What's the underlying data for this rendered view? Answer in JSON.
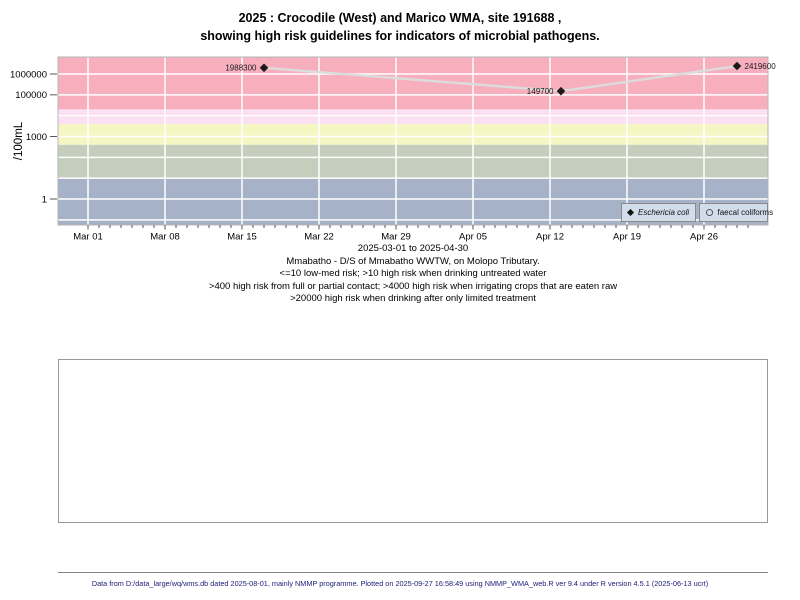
{
  "header": {
    "title_line1": "2025 : Crocodile (West) and Marico WMA, site 191688 ,",
    "title_line2": "showing high risk guidelines for indicators of microbial pathogens."
  },
  "chart_data": {
    "type": "line",
    "yscale": "log10",
    "ylabel": "/100mL",
    "xlabel_period": "2025-03-01 to 2025-04-30",
    "ylim_log10": [
      -1.25,
      6.82
    ],
    "x_days_total": 61,
    "x_ticks_major": [
      {
        "label": "Mar 01",
        "day": 0
      },
      {
        "label": "Mar 08",
        "day": 7
      },
      {
        "label": "Mar 15",
        "day": 14
      },
      {
        "label": "Mar 22",
        "day": 21
      },
      {
        "label": "Mar 29",
        "day": 28
      },
      {
        "label": "Apr 05",
        "day": 35
      },
      {
        "label": "Apr 12",
        "day": 42
      },
      {
        "label": "Apr 19",
        "day": 49
      },
      {
        "label": "Apr 26",
        "day": 56
      }
    ],
    "y_ticks": [
      {
        "label": "1000000",
        "value": 1000000
      },
      {
        "label": "100000",
        "value": 100000
      },
      {
        "label": "1000",
        "value": 1000
      },
      {
        "label": "1",
        "value": 1
      }
    ],
    "gridline_values_log10": [
      -1,
      0,
      1,
      2,
      3,
      4,
      5,
      6
    ],
    "grid_color": "#ffffff",
    "risk_bands": [
      {
        "name": "high risk when drinking after only limited treatment",
        "min": 20000,
        "max": null,
        "color": "#f7afbe"
      },
      {
        "name": "high risk when irrigating crops that are eaten raw",
        "min": 4000,
        "max": 20000,
        "color": "#fbdff2"
      },
      {
        "name": "high risk from full or partial contact",
        "min": 400,
        "max": 4000,
        "color": "#f6f5c4"
      },
      {
        "name": "high risk when drinking untreated water",
        "min": 10,
        "max": 400,
        "color": "#c5cebc"
      },
      {
        "name": "low-med risk",
        "min": null,
        "max": 10,
        "color": "#a6b2c8"
      }
    ],
    "series": [
      {
        "name": "Eschericia coli",
        "marker": "filled-diamond",
        "line_color": "#dcdcdc",
        "marker_color": "#1a1a1a",
        "points": [
          {
            "day": 16,
            "value": 1988300,
            "label": "1988300",
            "label_side": "left"
          },
          {
            "day": 43,
            "value": 149700,
            "label": "149700",
            "label_side": "left"
          },
          {
            "day": 59,
            "value": 2419600,
            "label": "2419600",
            "label_side": "right"
          }
        ]
      },
      {
        "name": "faecal coliforms",
        "marker": "open-circle",
        "line_color": "#dcdcdc",
        "marker_color": "#555555",
        "points": []
      }
    ],
    "legend": {
      "items": [
        {
          "label": "Eschericia coli",
          "marker": "filled-diamond",
          "italic": true
        },
        {
          "label": "faecal coliforms",
          "marker": "open-circle",
          "italic": false
        }
      ]
    }
  },
  "caption": {
    "line1": "Mmabatho - D/S of Mmabatho WWTW, on Molopo Tributary.",
    "line2": "<=10 low-med risk; >10 high risk when drinking untreated water",
    "line3": ">400 high risk from full or partial contact; >4000 high risk when irrigating crops that are eaten raw",
    "line4": ">20000 high risk when drinking after only limited treatment"
  },
  "footer": {
    "text": "Data from D:/data_large/wq/wms.db dated 2025-08-01, mainly NMMP programme. Plotted on 2025-09-27 16:58:49 using NMMP_WMA_web.R ver 9.4 under R version 4.5.1 (2025-06-13 ucrt)"
  }
}
